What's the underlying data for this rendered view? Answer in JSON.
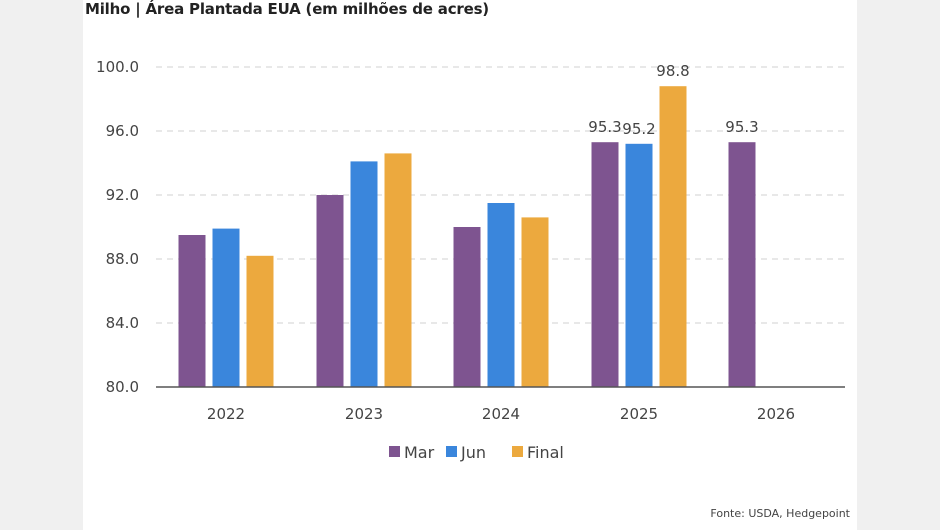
{
  "chart_data": {
    "type": "bar",
    "title": "Milho | Área Plantada EUA (em milhões de acres)",
    "xlabel": "",
    "ylabel": "",
    "ylim": [
      80,
      100
    ],
    "yticks": [
      80,
      84,
      88,
      92,
      96,
      100
    ],
    "ytick_labels": [
      "80.0",
      "84.0",
      "88.0",
      "92.0",
      "96.0",
      "100.0"
    ],
    "grid": true,
    "legend_position": "bottom-center",
    "categories": [
      "2022",
      "2023",
      "2024",
      "2025",
      "2026"
    ],
    "series": [
      {
        "name": "Mar",
        "color": "#7e5490",
        "values": [
          89.5,
          92.0,
          90.0,
          95.3,
          95.3
        ]
      },
      {
        "name": "Jun",
        "color": "#3a86dc",
        "values": [
          89.9,
          94.1,
          91.5,
          95.2,
          null
        ]
      },
      {
        "name": "Final",
        "color": "#eca93e",
        "values": [
          88.2,
          94.6,
          90.6,
          98.8,
          null
        ]
      }
    ],
    "data_labels": [
      {
        "category": "2025",
        "series": "Mar",
        "text": "95.3"
      },
      {
        "category": "2025",
        "series": "Jun",
        "text": "95.2"
      },
      {
        "category": "2025",
        "series": "Final",
        "text": "98.8"
      },
      {
        "category": "2026",
        "series": "Mar",
        "text": "95.3"
      }
    ],
    "source": "Fonte: USDA, Hedgepoint"
  }
}
